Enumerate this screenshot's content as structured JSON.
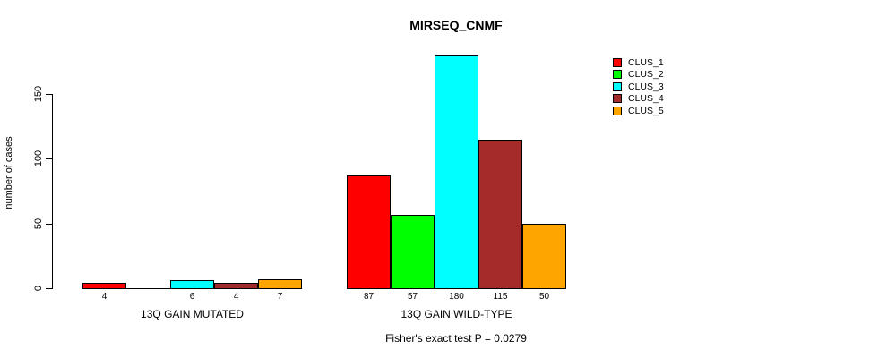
{
  "title": "MIRSEQ_CNMF",
  "footer": "Fisher's exact test P = 0.0279",
  "y_axis": {
    "label": "number of cases",
    "ticks": [
      0,
      50,
      100,
      150
    ]
  },
  "legend": {
    "position": "right",
    "items": [
      {
        "label": "CLUS_1",
        "color": "#FF0000"
      },
      {
        "label": "CLUS_2",
        "color": "#00FF00"
      },
      {
        "label": "CLUS_3",
        "color": "#00FFFF"
      },
      {
        "label": "CLUS_4",
        "color": "#A52A2A"
      },
      {
        "label": "CLUS_5",
        "color": "#FFA500"
      }
    ]
  },
  "chart_data": {
    "type": "bar",
    "title": "MIRSEQ_CNMF",
    "xlabel": "",
    "ylabel": "number of cases",
    "ylim": [
      0,
      185
    ],
    "yticks": [
      0,
      50,
      100,
      150
    ],
    "grid": false,
    "legend_position": "right",
    "categories": [
      "13Q GAIN MUTATED",
      "13Q GAIN WILD-TYPE"
    ],
    "series": [
      {
        "name": "CLUS_1",
        "color": "#FF0000",
        "values": [
          4,
          87
        ]
      },
      {
        "name": "CLUS_2",
        "color": "#00FF00",
        "values": [
          0,
          57
        ]
      },
      {
        "name": "CLUS_3",
        "color": "#00FFFF",
        "values": [
          6,
          180
        ]
      },
      {
        "name": "CLUS_4",
        "color": "#A52A2A",
        "values": [
          4,
          115
        ]
      },
      {
        "name": "CLUS_5",
        "color": "#FFA500",
        "values": [
          7,
          50
        ]
      }
    ],
    "bar_value_labels": [
      [
        "4",
        "",
        "6",
        "4",
        "7"
      ],
      [
        "87",
        "57",
        "180",
        "115",
        "50"
      ]
    ],
    "annotation": "Fisher's exact test P = 0.0279"
  }
}
